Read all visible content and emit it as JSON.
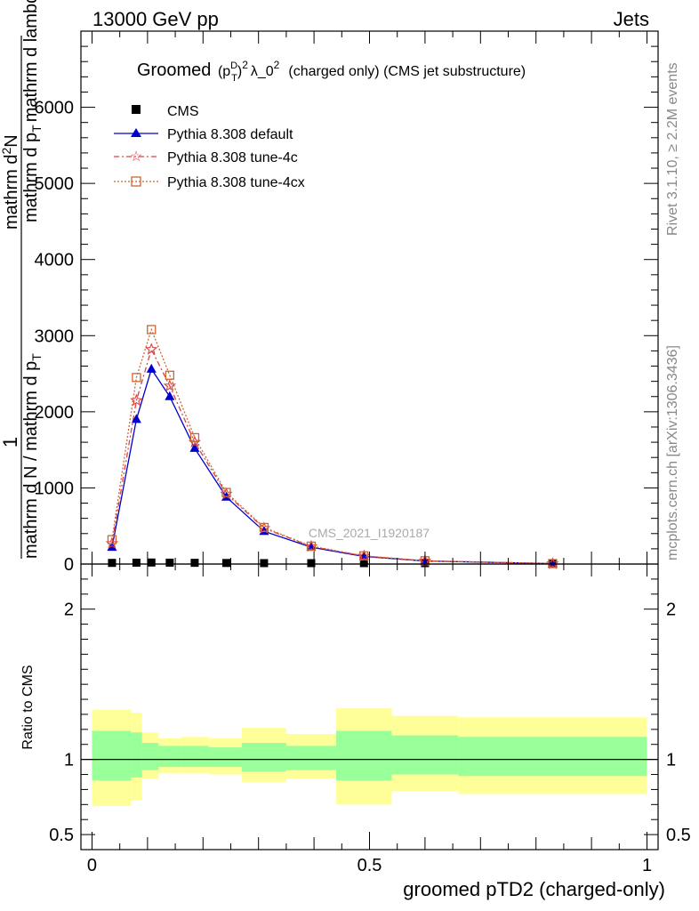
{
  "header": {
    "left": "13000 GeV pp",
    "right": "Jets"
  },
  "side": {
    "rivet": "Rivet 3.1.10, ≥ 2.2M events",
    "mcplots": "mcplots.cern.ch [arXiv:1306.3436]"
  },
  "title": {
    "prefix": "Groomed",
    "p": "(p",
    "sup_d": "D",
    "sub_t": "T",
    "close": ")",
    "sup2": "2",
    "lam": "λ_0",
    "sup3": "2",
    "suffix": "(charged only) (CMS jet substructure)"
  },
  "watermark": "CMS_2021_I1920187",
  "ylabel": {
    "num_one": "1",
    "den_one": "mathrm d N / mathrm d p",
    "den_sub": "T",
    "num_two": "mathrm d",
    "num_two_sup": "2",
    "num_two_rest": "N",
    "den_two": "mathrm d p",
    "den_two_sub": "T",
    "den_two_rest": "mathrm d lambda"
  },
  "ratio_ylabel": "Ratio to CMS",
  "xlabel": "groomed pTD2 (charged-only)",
  "colors": {
    "cms": "#000000",
    "default": "#0000cc",
    "tune4c": "#e04040",
    "tune4cx": "#cc6633",
    "band_inner": "#99ff99",
    "band_outer": "#ffff99"
  },
  "chart_data": {
    "type": "line",
    "x": [
      0.036,
      0.08,
      0.107,
      0.14,
      0.185,
      0.242,
      0.31,
      0.395,
      0.49,
      0.6,
      0.83
    ],
    "xlim": [
      -0.02,
      1.02
    ],
    "ylim": [
      0,
      7000
    ],
    "yticks": [
      0,
      1000,
      2000,
      3000,
      4000,
      5000,
      6000
    ],
    "ytick_labels": [
      "0",
      "1000",
      "2000",
      "3000",
      "4000",
      "5000",
      "6000"
    ],
    "xticks": [
      0,
      0.5,
      1
    ],
    "xtick_labels": [
      "0",
      "0.5",
      "1"
    ],
    "series": [
      {
        "name": "CMS",
        "key": "cms",
        "values": [
          15,
          18,
          20,
          18,
          16,
          14,
          12,
          10,
          8,
          5,
          2
        ]
      },
      {
        "name": "Pythia 8.308 default",
        "key": "default",
        "values": [
          220,
          1900,
          2560,
          2200,
          1520,
          880,
          430,
          220,
          100,
          40,
          5
        ]
      },
      {
        "name": "Pythia 8.308 tune-4c",
        "key": "tune4c",
        "values": [
          270,
          2150,
          2820,
          2340,
          1600,
          920,
          470,
          230,
          105,
          42,
          5
        ]
      },
      {
        "name": "Pythia 8.308 tune-4cx",
        "key": "tune4cx",
        "values": [
          320,
          2450,
          3080,
          2480,
          1660,
          940,
          480,
          235,
          108,
          43,
          6
        ]
      }
    ],
    "ratio": {
      "ylim": [
        0.4,
        2.3
      ],
      "yticks": [
        0.5,
        1,
        2
      ],
      "ytick_labels": [
        "0.5",
        "1",
        "2"
      ],
      "bins": [
        {
          "x0": 0.0,
          "x1": 0.07,
          "inner": [
            0.86,
            1.19
          ],
          "outer": [
            0.69,
            1.33
          ]
        },
        {
          "x0": 0.07,
          "x1": 0.09,
          "inner": [
            0.88,
            1.18
          ],
          "outer": [
            0.73,
            1.31
          ]
        },
        {
          "x0": 0.09,
          "x1": 0.12,
          "inner": [
            0.93,
            1.11
          ],
          "outer": [
            0.87,
            1.18
          ]
        },
        {
          "x0": 0.12,
          "x1": 0.16,
          "inner": [
            0.95,
            1.09
          ],
          "outer": [
            0.91,
            1.14
          ]
        },
        {
          "x0": 0.16,
          "x1": 0.21,
          "inner": [
            0.95,
            1.09
          ],
          "outer": [
            0.91,
            1.15
          ]
        },
        {
          "x0": 0.21,
          "x1": 0.27,
          "inner": [
            0.95,
            1.08
          ],
          "outer": [
            0.9,
            1.14
          ]
        },
        {
          "x0": 0.27,
          "x1": 0.35,
          "inner": [
            0.92,
            1.11
          ],
          "outer": [
            0.85,
            1.21
          ]
        },
        {
          "x0": 0.35,
          "x1": 0.44,
          "inner": [
            0.93,
            1.09
          ],
          "outer": [
            0.87,
            1.17
          ]
        },
        {
          "x0": 0.44,
          "x1": 0.54,
          "inner": [
            0.86,
            1.19
          ],
          "outer": [
            0.7,
            1.34
          ]
        },
        {
          "x0": 0.54,
          "x1": 0.66,
          "inner": [
            0.9,
            1.16
          ],
          "outer": [
            0.79,
            1.29
          ]
        },
        {
          "x0": 0.66,
          "x1": 1.0,
          "inner": [
            0.89,
            1.15
          ],
          "outer": [
            0.77,
            1.28
          ]
        }
      ]
    }
  }
}
